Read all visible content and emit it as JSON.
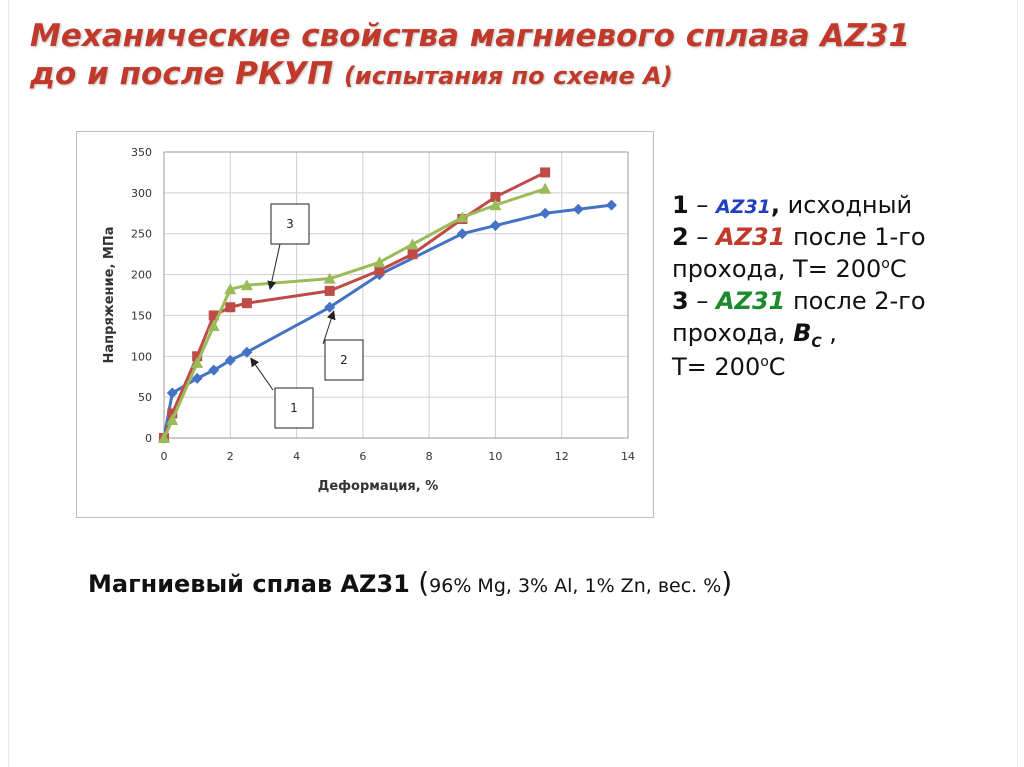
{
  "title": {
    "line1": "Механические свойства магниевого сплава AZ31",
    "line2_main": "до и после РКУП ",
    "line2_paren": "(испытания по схеме А)"
  },
  "colors": {
    "title": "#c0392b",
    "series1": "#4472c4",
    "series2": "#be4b48",
    "series3": "#9bbb59",
    "legend_alloy1": "#1f3fbf",
    "legend_alloy2": "#c0392b",
    "legend_alloy3": "#1e8a2e"
  },
  "chart_data": {
    "type": "line",
    "xlabel": "Деформация, %",
    "ylabel": "Напряжение, МПа",
    "xlim": [
      0,
      14
    ],
    "ylim": [
      0,
      350
    ],
    "xticks": [
      "0",
      "2",
      "4",
      "6",
      "8",
      "10",
      "12",
      "14"
    ],
    "yticks": [
      "0",
      "50",
      "100",
      "150",
      "200",
      "250",
      "300",
      "350"
    ],
    "grid": true,
    "series": [
      {
        "name": "1",
        "marker": "diamond",
        "points": [
          [
            0,
            0
          ],
          [
            0.25,
            55
          ],
          [
            1,
            73
          ],
          [
            1.5,
            83
          ],
          [
            2,
            95
          ],
          [
            2.5,
            105
          ],
          [
            5,
            160
          ],
          [
            6.5,
            200
          ],
          [
            9,
            250
          ],
          [
            10,
            260
          ],
          [
            11.5,
            275
          ],
          [
            12.5,
            280
          ],
          [
            13.5,
            285
          ]
        ]
      },
      {
        "name": "2",
        "marker": "square",
        "points": [
          [
            0,
            0
          ],
          [
            0.25,
            30
          ],
          [
            1,
            100
          ],
          [
            1.5,
            150
          ],
          [
            2,
            160
          ],
          [
            2.5,
            165
          ],
          [
            5,
            180
          ],
          [
            6.5,
            205
          ],
          [
            7.5,
            225
          ],
          [
            9,
            268
          ],
          [
            10,
            295
          ],
          [
            11.5,
            325
          ]
        ]
      },
      {
        "name": "3",
        "marker": "triangle",
        "points": [
          [
            0,
            0
          ],
          [
            0.25,
            22
          ],
          [
            1,
            92
          ],
          [
            1.5,
            137
          ],
          [
            2,
            182
          ],
          [
            2.5,
            187
          ],
          [
            5,
            195
          ],
          [
            6.5,
            215
          ],
          [
            7.5,
            237
          ],
          [
            9,
            270
          ],
          [
            10,
            285
          ],
          [
            11.5,
            305
          ]
        ]
      }
    ],
    "annotations": [
      {
        "label": "1",
        "target": [
          2.5,
          105
        ]
      },
      {
        "label": "2",
        "target": [
          5,
          160
        ]
      },
      {
        "label": "3",
        "target": [
          3,
          187
        ]
      }
    ]
  },
  "legend": {
    "item1": {
      "num": "1",
      "dash": " – ",
      "alloy": "AZ31",
      "comma": ",",
      "text": " исходный"
    },
    "item2": {
      "num": "2",
      "dash": " – ",
      "alloy": "AZ31",
      "text1": " после 1-го",
      "text2": "прохода, Т= 200",
      "sup": "о",
      "unit": "С"
    },
    "item3": {
      "num": "3",
      "dash": " – ",
      "alloy": "AZ31",
      "text1": " после 2-го",
      "text2": "прохода, ",
      "bc": "В",
      "bc_sub": "С",
      "text3": " ,",
      "text4": "Т= 200",
      "sup": "о",
      "unit": "С"
    }
  },
  "caption": {
    "bold": "Магниевый сплав AZ31 ",
    "open": "(",
    "composition": "96% Mg, 3% Al, 1% Zn, вес. %",
    "close": ")"
  }
}
